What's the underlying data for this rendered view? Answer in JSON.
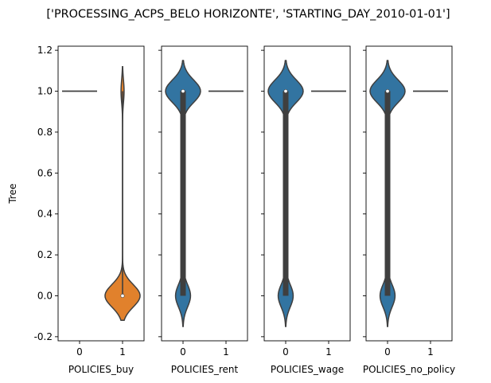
{
  "chart_data": {
    "type": "violin",
    "title": "['PROCESSING_ACPS_BELO HORIZONTE', 'STARTING_DAY_2010-01-01']",
    "ylabel": "Tree",
    "ylim": [
      -0.22,
      1.22
    ],
    "yticks": [
      "-0.2",
      "0.0",
      "0.2",
      "0.4",
      "0.6",
      "0.8",
      "1.0",
      "1.2"
    ],
    "ytick_values": [
      -0.2,
      0.0,
      0.2,
      0.4,
      0.6,
      0.8,
      1.0,
      1.2
    ],
    "categories": [
      "0",
      "1"
    ],
    "colors": {
      "cat0": "#3274a1",
      "cat1": "#e1812c",
      "line": "#3f3f3f",
      "median": "#ffffff"
    },
    "panels": [
      {
        "xlabel": "POLICIES_buy",
        "groups": [
          {
            "category": "0",
            "shape": "flat",
            "value": 1.0
          },
          {
            "category": "1",
            "shape": "bimodal",
            "low_mode": 0.0,
            "high_mode": 1.0,
            "low_weight": 0.92,
            "range": [
              -0.12,
              1.12
            ],
            "median": 0.0,
            "q1": 0.0,
            "q3": 0.0,
            "whisker": [
              0.0,
              1.0
            ]
          }
        ]
      },
      {
        "xlabel": "POLICIES_rent",
        "groups": [
          {
            "category": "0",
            "shape": "bimodal",
            "low_mode": 0.0,
            "high_mode": 1.0,
            "low_weight": 0.3,
            "range": [
              -0.15,
              1.15
            ],
            "median": 1.0,
            "q1": 0.0,
            "q3": 1.0,
            "whisker": [
              0.0,
              1.0
            ]
          },
          {
            "category": "1",
            "shape": "flat",
            "value": 1.0
          }
        ]
      },
      {
        "xlabel": "POLICIES_wage",
        "groups": [
          {
            "category": "0",
            "shape": "bimodal",
            "low_mode": 0.0,
            "high_mode": 1.0,
            "low_weight": 0.3,
            "range": [
              -0.15,
              1.15
            ],
            "median": 1.0,
            "q1": 0.0,
            "q3": 1.0,
            "whisker": [
              0.0,
              1.0
            ]
          },
          {
            "category": "1",
            "shape": "flat",
            "value": 1.0
          }
        ]
      },
      {
        "xlabel": "POLICIES_no_policy",
        "groups": [
          {
            "category": "0",
            "shape": "bimodal",
            "low_mode": 0.0,
            "high_mode": 1.0,
            "low_weight": 0.3,
            "range": [
              -0.15,
              1.15
            ],
            "median": 1.0,
            "q1": 0.0,
            "q3": 1.0,
            "whisker": [
              0.0,
              1.0
            ]
          },
          {
            "category": "1",
            "shape": "flat",
            "value": 1.0
          }
        ]
      }
    ]
  }
}
